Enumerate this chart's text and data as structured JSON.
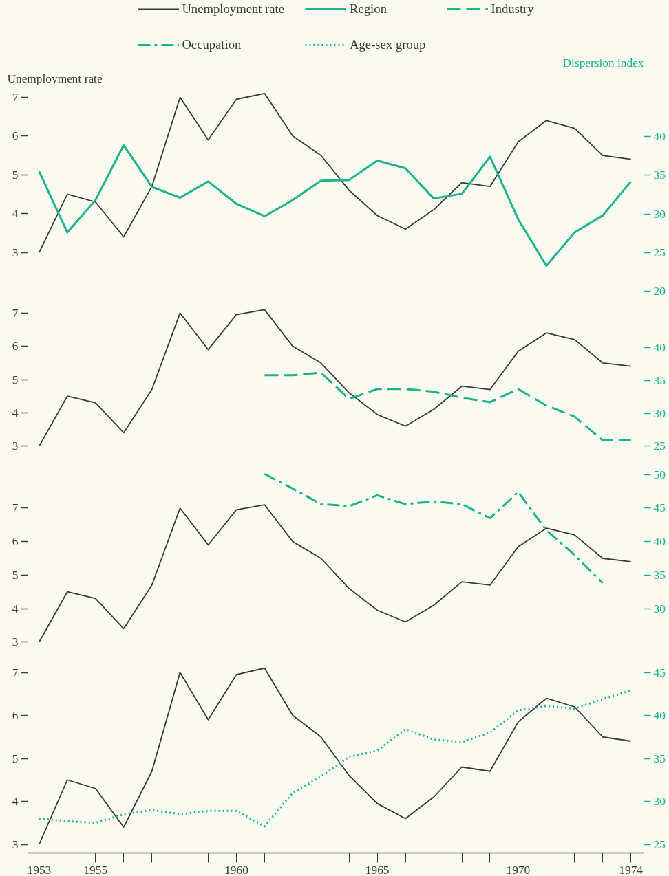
{
  "chart_data": [
    {
      "type": "line",
      "ylabel": "Unemployment rate",
      "y2label": "Dispersion index",
      "legend": "top",
      "grid": false,
      "tick_labels": "y",
      "line_style": "solid",
      "marker": "none",
      "x": [
        1953,
        1954,
        1955,
        1956,
        1957,
        1958,
        1959,
        1960,
        1961,
        1962,
        1963,
        1964,
        1965,
        1966,
        1967,
        1968,
        1969,
        1970,
        1971,
        1972,
        1973,
        1974
      ],
      "ylim": [
        2.0,
        7.3
      ],
      "yticks": [
        3,
        4,
        5,
        6,
        7
      ],
      "y2lim": [
        20.0,
        46.6
      ],
      "y2ticks": [
        20,
        25,
        30,
        35,
        40
      ],
      "series": [
        {
          "name": "Unemployment rate",
          "color": "#3a3a3a",
          "values": [
            3.0,
            4.5,
            4.3,
            3.4,
            4.7,
            7.0,
            5.9,
            6.95,
            7.1,
            6.0,
            5.5,
            4.6,
            3.95,
            3.6,
            4.1,
            4.8,
            4.7,
            5.85,
            6.4,
            6.2,
            5.5,
            5.4
          ]
        },
        {
          "name": "Region",
          "color": "#1db38a",
          "axis": "y2",
          "values": [
            35.5,
            27.6,
            31.8,
            38.9,
            33.5,
            32.1,
            34.2,
            31.3,
            29.7,
            31.8,
            34.3,
            34.4,
            36.9,
            35.9,
            32.0,
            32.6,
            37.4,
            29.3,
            23.3,
            27.6,
            29.8,
            34.2
          ]
        }
      ]
    },
    {
      "type": "line",
      "grid": false,
      "tick_labels": "y",
      "line_style": "solid",
      "x": [
        1953,
        1954,
        1955,
        1956,
        1957,
        1958,
        1959,
        1960,
        1961,
        1962,
        1963,
        1964,
        1965,
        1966,
        1967,
        1968,
        1969,
        1970,
        1971,
        1972,
        1973,
        1974
      ],
      "ylim": [
        2.8,
        7.2
      ],
      "yticks": [
        3,
        4,
        5,
        6,
        7
      ],
      "y2lim": [
        24.0,
        46.3
      ],
      "y2ticks": [
        25,
        30,
        35,
        40
      ],
      "series": [
        {
          "color": "#3a3a3a",
          "values": [
            3.0,
            4.5,
            4.3,
            3.4,
            4.7,
            7.0,
            5.9,
            6.95,
            7.1,
            6.0,
            5.5,
            4.6,
            3.95,
            3.6,
            4.1,
            4.8,
            4.7,
            5.85,
            6.4,
            6.2,
            5.5,
            5.4
          ]
        },
        {
          "name": "Industry",
          "color": "#1db38a",
          "axis": "y2",
          "line_style": "dashed",
          "values": [
            null,
            null,
            null,
            null,
            null,
            null,
            null,
            null,
            35.8,
            35.8,
            36.2,
            32.2,
            33.7,
            33.7,
            33.3,
            32.4,
            31.7,
            33.7,
            31.2,
            29.5,
            25.9,
            25.9
          ]
        }
      ]
    },
    {
      "type": "line",
      "grid": false,
      "tick_labels": "y",
      "line_style": "solid",
      "x": [
        1953,
        1954,
        1955,
        1956,
        1957,
        1958,
        1959,
        1960,
        1961,
        1962,
        1963,
        1964,
        1965,
        1966,
        1967,
        1968,
        1969,
        1970,
        1971,
        1972,
        1973,
        1974
      ],
      "ylim": [
        2.8,
        8.2
      ],
      "yticks": [
        3,
        4,
        5,
        6,
        7
      ],
      "y2lim": [
        24.0,
        51.0
      ],
      "y2ticks": [
        30,
        35,
        40,
        45,
        50
      ],
      "series": [
        {
          "color": "#3a3a3a",
          "values": [
            3.0,
            4.5,
            4.3,
            3.4,
            4.7,
            7.0,
            5.9,
            6.95,
            7.1,
            6.0,
            5.5,
            4.6,
            3.95,
            3.6,
            4.1,
            4.8,
            4.7,
            5.85,
            6.4,
            6.2,
            5.5,
            5.4
          ]
        },
        {
          "name": "Occupation",
          "color": "#1db38a",
          "axis": "y2",
          "line_style": "dashdot",
          "values": [
            null,
            null,
            null,
            null,
            null,
            null,
            null,
            null,
            50.1,
            47.9,
            45.6,
            45.3,
            46.9,
            45.6,
            46.0,
            45.6,
            43.5,
            47.4,
            41.7,
            38.0,
            33.8,
            null
          ]
        }
      ]
    },
    {
      "type": "line",
      "grid": false,
      "line_style": "solid",
      "x": [
        1953,
        1954,
        1955,
        1956,
        1957,
        1958,
        1959,
        1960,
        1961,
        1962,
        1963,
        1964,
        1965,
        1966,
        1967,
        1968,
        1969,
        1970,
        1971,
        1972,
        1973,
        1974
      ],
      "xlim": [
        1952.6,
        1974.46
      ],
      "xticks": [
        1953,
        {
          "value": 1954,
          "label": null
        },
        1955,
        {
          "value": 1956,
          "label": null
        },
        {
          "value": 1957,
          "label": null
        },
        {
          "value": 1958,
          "label": null
        },
        {
          "value": 1959,
          "label": null
        },
        1960,
        {
          "value": 1961,
          "label": null
        },
        {
          "value": 1962,
          "label": null
        },
        {
          "value": 1963,
          "label": null
        },
        {
          "value": 1964,
          "label": null
        },
        1965,
        {
          "value": 1966,
          "label": null
        },
        {
          "value": 1967,
          "label": null
        },
        {
          "value": 1968,
          "label": null
        },
        {
          "value": 1969,
          "label": null
        },
        1970,
        {
          "value": 1971,
          "label": null
        },
        {
          "value": 1972,
          "label": null
        },
        {
          "value": 1973,
          "label": null
        },
        1974
      ],
      "ylim": [
        2.8,
        7.2
      ],
      "yticks": [
        3,
        4,
        5,
        6,
        7
      ],
      "y2lim": [
        24.0,
        46.0
      ],
      "y2ticks": [
        25,
        30,
        35,
        40,
        45
      ],
      "series": [
        {
          "color": "#3a3a3a",
          "values": [
            3.0,
            4.5,
            4.3,
            3.4,
            4.7,
            7.0,
            5.9,
            6.95,
            7.1,
            6.0,
            5.5,
            4.6,
            3.95,
            3.6,
            4.1,
            4.8,
            4.7,
            5.85,
            6.4,
            6.2,
            5.5,
            5.4
          ]
        },
        {
          "name": "Age-sex group",
          "color": "#1db38a",
          "axis": "y2",
          "line_style": "dotted",
          "values": [
            28.0,
            27.7,
            27.5,
            28.5,
            29.0,
            28.5,
            28.9,
            28.9,
            27.1,
            31.0,
            32.9,
            35.2,
            35.9,
            38.4,
            37.2,
            36.9,
            38.0,
            40.6,
            41.1,
            40.8,
            41.9,
            42.9
          ]
        }
      ]
    }
  ]
}
